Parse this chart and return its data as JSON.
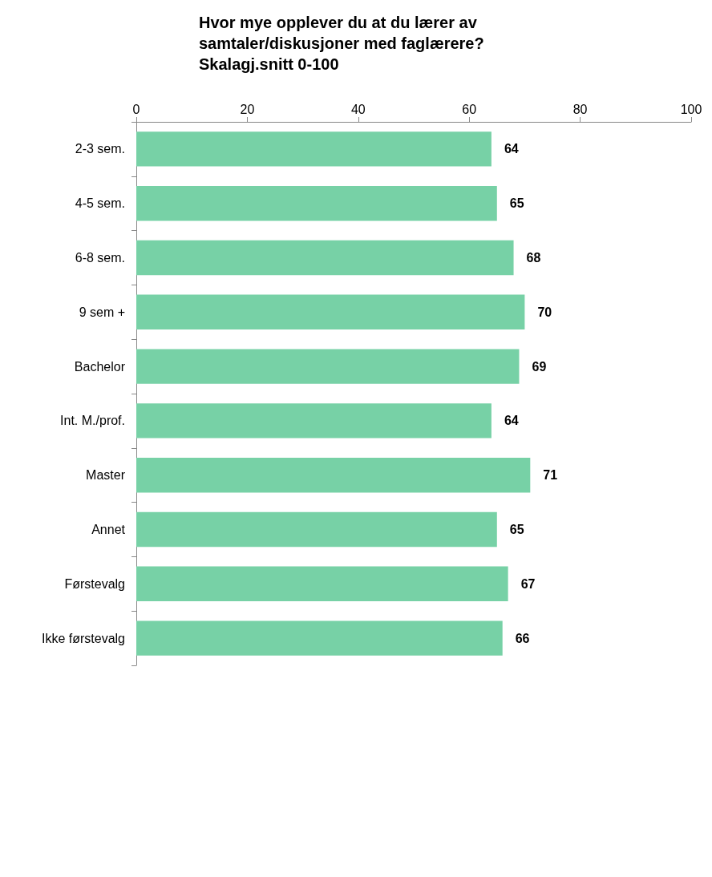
{
  "chart_data": {
    "type": "bar",
    "orientation": "horizontal",
    "title": "Hvor mye opplever du at du lærer av\nsamtaler/diskusjoner med faglærere?\nSkalagj.snitt 0-100",
    "categories": [
      "2-3 sem.",
      "4-5 sem.",
      "6-8 sem.",
      "9 sem +",
      "Bachelor",
      "Int. M./prof.",
      "Master",
      "Annet",
      "Førstevalg",
      "Ikke førstevalg"
    ],
    "values": [
      64,
      65,
      68,
      70,
      69,
      64,
      71,
      65,
      67,
      66
    ],
    "color": "#77d1a6",
    "xlim": [
      0,
      100
    ],
    "xticks": [
      0,
      20,
      40,
      60,
      80,
      100
    ],
    "grid": false,
    "data_labels": true
  }
}
